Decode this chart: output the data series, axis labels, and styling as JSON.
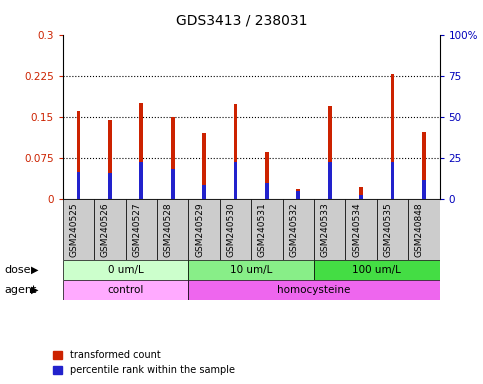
{
  "title": "GDS3413 / 238031",
  "samples": [
    "GSM240525",
    "GSM240526",
    "GSM240527",
    "GSM240528",
    "GSM240529",
    "GSM240530",
    "GSM240531",
    "GSM240532",
    "GSM240533",
    "GSM240534",
    "GSM240535",
    "GSM240848"
  ],
  "transformed_count": [
    0.16,
    0.145,
    0.175,
    0.15,
    0.12,
    0.173,
    0.085,
    0.018,
    0.17,
    0.022,
    0.228,
    0.122
  ],
  "percentile_rank_left": [
    0.05,
    0.047,
    0.068,
    0.055,
    0.025,
    0.068,
    0.03,
    0.015,
    0.068,
    0.008,
    0.068,
    0.035
  ],
  "red_color": "#CC2200",
  "blue_color": "#2222CC",
  "ylim_left": [
    0,
    0.3
  ],
  "ylim_right": [
    0,
    100
  ],
  "yticks_left": [
    0,
    0.075,
    0.15,
    0.225,
    0.3
  ],
  "ytick_labels_left": [
    "0",
    "0.075",
    "0.15",
    "0.225",
    "0.3"
  ],
  "yticks_right": [
    0,
    25,
    50,
    75,
    100
  ],
  "ytick_labels_right": [
    "0",
    "25",
    "50",
    "75",
    "100%"
  ],
  "dose_groups": [
    {
      "label": "0 um/L",
      "start": 0,
      "end": 4,
      "color": "#CCFFCC"
    },
    {
      "label": "10 um/L",
      "start": 4,
      "end": 8,
      "color": "#88EE88"
    },
    {
      "label": "100 um/L",
      "start": 8,
      "end": 12,
      "color": "#44DD44"
    }
  ],
  "agent_groups": [
    {
      "label": "control",
      "start": 0,
      "end": 4,
      "color": "#FFAAFF"
    },
    {
      "label": "homocysteine",
      "start": 4,
      "end": 12,
      "color": "#EE66EE"
    }
  ],
  "dose_label": "dose",
  "agent_label": "agent",
  "legend_red": "transformed count",
  "legend_blue": "percentile rank within the sample",
  "bar_width": 0.12,
  "tick_bg_color": "#CCCCCC",
  "bg_color": "#FFFFFF"
}
